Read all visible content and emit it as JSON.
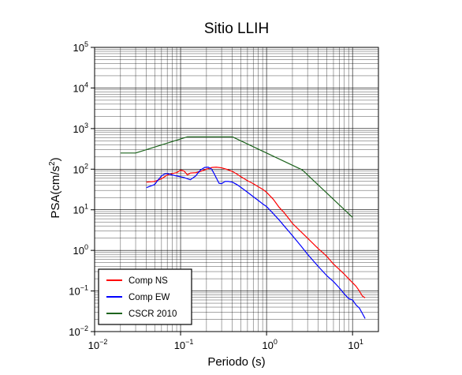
{
  "chart_data": {
    "type": "line",
    "title": "Sitio LLIH",
    "xlabel": "Periodo (s)",
    "ylabel": {
      "base": "PSA(cm/s",
      "sup": "2",
      "close": ")"
    },
    "x_scale": "log",
    "y_scale": "log",
    "xlim": [
      0.01,
      20
    ],
    "ylim": [
      0.01,
      100000
    ],
    "grid": true,
    "legend_position": "bottom-left",
    "x_ticks": [
      {
        "value": 0.01,
        "base": "10",
        "exp": "−2"
      },
      {
        "value": 0.1,
        "base": "10",
        "exp": "−1"
      },
      {
        "value": 1,
        "base": "10",
        "exp": "0"
      },
      {
        "value": 10,
        "base": "10",
        "exp": "1"
      }
    ],
    "y_ticks": [
      {
        "value": 0.01,
        "base": "10",
        "exp": "−2"
      },
      {
        "value": 0.1,
        "base": "10",
        "exp": "−1"
      },
      {
        "value": 1,
        "base": "10",
        "exp": "0"
      },
      {
        "value": 10,
        "base": "10",
        "exp": "1"
      },
      {
        "value": 100,
        "base": "10",
        "exp": "2"
      },
      {
        "value": 1000,
        "base": "10",
        "exp": "3"
      },
      {
        "value": 10000,
        "base": "10",
        "exp": "4"
      },
      {
        "value": 100000,
        "base": "10",
        "exp": "5"
      }
    ],
    "series": [
      {
        "name": "Comp NS",
        "color": "#ff0000",
        "x": [
          0.04,
          0.05,
          0.06,
          0.07,
          0.08,
          0.09,
          0.1,
          0.11,
          0.12,
          0.13,
          0.15,
          0.17,
          0.2,
          0.23,
          0.26,
          0.3,
          0.35,
          0.4,
          0.45,
          0.5,
          0.6,
          0.7,
          0.8,
          0.9,
          1.0,
          1.2,
          1.4,
          1.6,
          1.8,
          2.0,
          2.5,
          3.0,
          4.0,
          5.0,
          6.0,
          7.0,
          8.0,
          9.0,
          10,
          11,
          12,
          13,
          14
        ],
        "y": [
          48,
          50,
          58,
          72,
          78,
          82,
          95,
          90,
          72,
          80,
          82,
          88,
          100,
          110,
          112,
          108,
          98,
          88,
          76,
          66,
          52,
          44,
          37,
          32,
          27,
          18,
          11.5,
          8.5,
          6.2,
          4.6,
          2.9,
          2.0,
          1.1,
          0.72,
          0.46,
          0.34,
          0.26,
          0.2,
          0.16,
          0.13,
          0.1,
          0.075,
          0.068
        ]
      },
      {
        "name": "Comp EW",
        "color": "#0000ff",
        "x": [
          0.04,
          0.05,
          0.055,
          0.06,
          0.065,
          0.07,
          0.08,
          0.09,
          0.1,
          0.11,
          0.12,
          0.13,
          0.15,
          0.17,
          0.19,
          0.21,
          0.23,
          0.25,
          0.28,
          0.3,
          0.33,
          0.36,
          0.4,
          0.45,
          0.5,
          0.6,
          0.7,
          0.8,
          0.9,
          1.0,
          1.2,
          1.4,
          1.6,
          1.8,
          2.0,
          2.5,
          3.0,
          4.0,
          5.0,
          6.0,
          7.0,
          8.0,
          9.0,
          10,
          11,
          12,
          13,
          14
        ],
        "y": [
          35,
          42,
          55,
          68,
          76,
          78,
          72,
          68,
          65,
          62,
          58,
          55,
          68,
          95,
          110,
          112,
          100,
          72,
          45,
          44,
          50,
          50,
          48,
          42,
          36,
          27,
          21,
          17,
          14,
          12,
          8.0,
          5.6,
          4.0,
          3.0,
          2.3,
          1.3,
          0.8,
          0.4,
          0.24,
          0.17,
          0.12,
          0.085,
          0.065,
          0.06,
          0.045,
          0.038,
          0.028,
          0.021
        ]
      },
      {
        "name": "CSCR 2010",
        "color": "#1e641e",
        "x": [
          0.02,
          0.03,
          0.12,
          0.4,
          2.6,
          10
        ],
        "y": [
          250,
          250,
          625,
          625,
          96,
          6.5
        ]
      }
    ]
  }
}
